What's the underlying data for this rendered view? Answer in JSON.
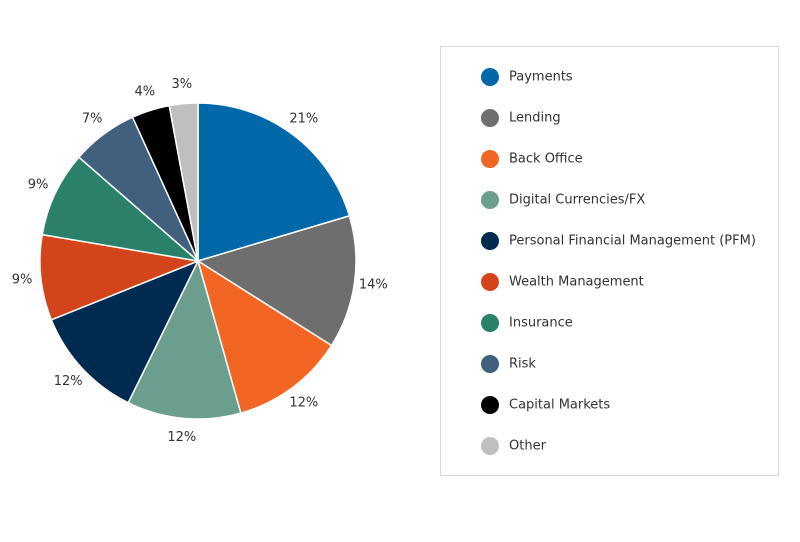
{
  "chart_data": {
    "type": "pie",
    "categories": [
      "Payments",
      "Lending",
      "Back Office",
      "Digital Currencies/FX",
      "Personal Financial Management (PFM)",
      "Wealth Management",
      "Insurance",
      "Risk",
      "Capital Markets",
      "Other"
    ],
    "values": [
      21,
      14,
      12,
      12,
      12,
      9,
      9,
      7,
      4,
      3
    ],
    "value_labels": [
      "21%",
      "14%",
      "12%",
      "12%",
      "12%",
      "9%",
      "9%",
      "7%",
      "4%",
      "3%"
    ],
    "colors": [
      "#0068a8",
      "#6e6e6e",
      "#f26522",
      "#6b9e8e",
      "#002b50",
      "#d4441a",
      "#2a8068",
      "#40607e",
      "#000000",
      "#bfbfbf"
    ],
    "legend": "right"
  }
}
